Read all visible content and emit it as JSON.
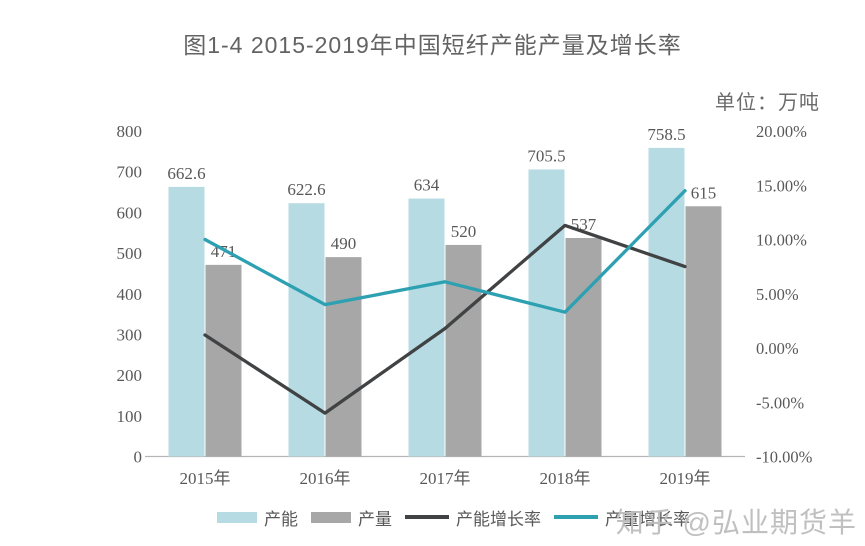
{
  "title": "图1-4  2015-2019年中国短纤产能产量及增长率",
  "unit_label": "单位：万吨",
  "watermark": "知乎 @弘业期货羊",
  "chart_data": {
    "type": "bar",
    "subtype": "combo bar+line, dual axis",
    "title": "图1-4 2015-2019年中国短纤产能产量及增长率",
    "categories": [
      "2015年",
      "2016年",
      "2017年",
      "2018年",
      "2019年"
    ],
    "series": [
      {
        "name": "产能",
        "type": "bar",
        "axis": "left",
        "color": "#b7dbe2",
        "values": [
          662.6,
          622.6,
          634,
          705.5,
          758.5
        ]
      },
      {
        "name": "产量",
        "type": "bar",
        "axis": "left",
        "color": "#a7a7a7",
        "values": [
          471,
          490,
          520,
          537,
          615
        ]
      },
      {
        "name": "产能增长率",
        "type": "line",
        "axis": "right",
        "color": "#404244",
        "values_pct": [
          1.2,
          -6.0,
          1.8,
          11.3,
          7.5
        ]
      },
      {
        "name": "产量增长率",
        "type": "line",
        "axis": "right",
        "color": "#2da0b2",
        "values_pct": [
          10.0,
          4.0,
          6.1,
          3.3,
          14.5
        ]
      }
    ],
    "left_axis": {
      "min": 0,
      "max": 800,
      "tick_values": [
        800,
        700,
        600,
        500,
        400,
        300,
        200,
        100,
        0
      ]
    },
    "right_axis": {
      "min": -10,
      "max": 20,
      "tick_labels": [
        "20.00%",
        "15.00%",
        "10.00%",
        "5.00%",
        "0.00%",
        "-5.00%",
        "-10.00%"
      ],
      "tick_values": [
        20,
        15,
        10,
        5,
        0,
        -5,
        -10
      ]
    },
    "grid": "off",
    "legend_position": "bottom",
    "unit": "万吨"
  },
  "legend": {
    "items": [
      {
        "label": "产能",
        "swatch": "bar",
        "color": "#b7dbe2"
      },
      {
        "label": "产量",
        "swatch": "bar",
        "color": "#a7a7a7"
      },
      {
        "label": "产能增长率",
        "swatch": "line",
        "color": "#404244"
      },
      {
        "label": "产量增长率",
        "swatch": "line",
        "color": "#2da0b2"
      }
    ]
  }
}
